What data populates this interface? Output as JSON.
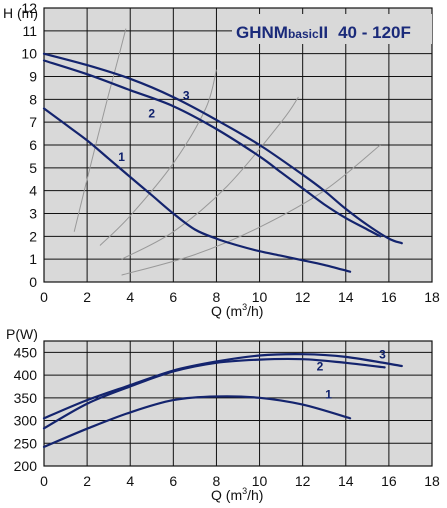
{
  "colors": {
    "curve": "#14246e",
    "grid": "#111111",
    "panel": "#d9d9d9",
    "system_curve": "#999999"
  },
  "chart_data": [
    {
      "type": "line",
      "title": {
        "model": "GHNM",
        "suffix": "basic",
        "roman": "II",
        "range": "40 - 120F"
      },
      "ylabel": "H (m)",
      "xlabel": {
        "main": "Q (m",
        "sup": "3",
        "tail": "/h)"
      },
      "x_ticks": [
        "0",
        "2",
        "4",
        "6",
        "8",
        "10",
        "12",
        "14",
        "16",
        "18"
      ],
      "y_ticks": [
        "0",
        "1",
        "2",
        "3",
        "4",
        "5",
        "6",
        "7",
        "8",
        "9",
        "10",
        "11",
        "12"
      ],
      "xlim": [
        0,
        18
      ],
      "ylim": [
        0,
        12
      ],
      "grid": true,
      "series": [
        {
          "name": "1",
          "x": [
            0,
            1,
            2,
            3,
            4,
            5,
            6,
            7,
            8,
            9,
            10,
            11,
            12,
            13,
            14.2
          ],
          "y": [
            7.6,
            6.9,
            6.2,
            5.4,
            4.6,
            3.8,
            3.0,
            2.3,
            1.9,
            1.6,
            1.35,
            1.15,
            0.95,
            0.75,
            0.45
          ]
        },
        {
          "name": "2",
          "x": [
            0,
            2,
            4,
            6,
            8,
            10,
            11,
            12,
            13,
            14,
            15,
            15.6
          ],
          "y": [
            9.7,
            9.1,
            8.4,
            7.7,
            6.7,
            5.5,
            4.8,
            4.1,
            3.4,
            2.8,
            2.3,
            2.0
          ]
        },
        {
          "name": "3",
          "x": [
            0,
            2,
            4,
            6,
            8,
            10,
            12,
            13,
            14,
            15,
            16,
            16.6
          ],
          "y": [
            10.0,
            9.5,
            8.9,
            8.1,
            7.1,
            6.0,
            4.7,
            4.0,
            3.2,
            2.5,
            1.9,
            1.7
          ]
        }
      ],
      "system_curves": [
        {
          "x": [
            1.4,
            2.0,
            2.8,
            3.5,
            3.8
          ],
          "y": [
            2.2,
            4.5,
            7.5,
            10.0,
            11.1
          ]
        },
        {
          "x": [
            2.6,
            4.0,
            6.0,
            7.5,
            8.0
          ],
          "y": [
            1.6,
            2.9,
            5.2,
            7.6,
            9.3
          ]
        },
        {
          "x": [
            3.6,
            6.0,
            8.5,
            11.0,
            11.8
          ],
          "y": [
            1.0,
            2.2,
            4.2,
            7.0,
            8.1
          ]
        },
        {
          "x": [
            3.6,
            7.0,
            10.0,
            13.0,
            15.6
          ],
          "y": [
            0.3,
            1.2,
            2.4,
            4.0,
            6.0
          ]
        }
      ]
    },
    {
      "type": "line",
      "ylabel": "P(W)",
      "xlabel": {
        "main": "Q (m",
        "sup": "3",
        "tail": "/h)"
      },
      "x_ticks": [
        "0",
        "2",
        "4",
        "6",
        "8",
        "10",
        "12",
        "14",
        "16",
        "18"
      ],
      "y_ticks": [
        "200",
        "250",
        "300",
        "350",
        "400",
        "450"
      ],
      "xlim": [
        0,
        18
      ],
      "ylim": [
        200,
        475
      ],
      "grid": true,
      "series": [
        {
          "name": "1",
          "x": [
            0,
            2,
            4,
            6,
            8,
            10,
            12,
            14.2
          ],
          "y": [
            242,
            282,
            318,
            345,
            353,
            350,
            335,
            305
          ]
        },
        {
          "name": "2",
          "x": [
            0,
            2,
            4,
            6,
            8,
            10,
            12,
            14,
            15.8
          ],
          "y": [
            283,
            337,
            375,
            408,
            427,
            434,
            435,
            427,
            417
          ]
        },
        {
          "name": "3",
          "x": [
            0,
            2,
            4,
            6,
            8,
            10,
            12,
            14,
            16.6
          ],
          "y": [
            305,
            345,
            378,
            410,
            430,
            443,
            446,
            440,
            420
          ]
        }
      ]
    }
  ]
}
